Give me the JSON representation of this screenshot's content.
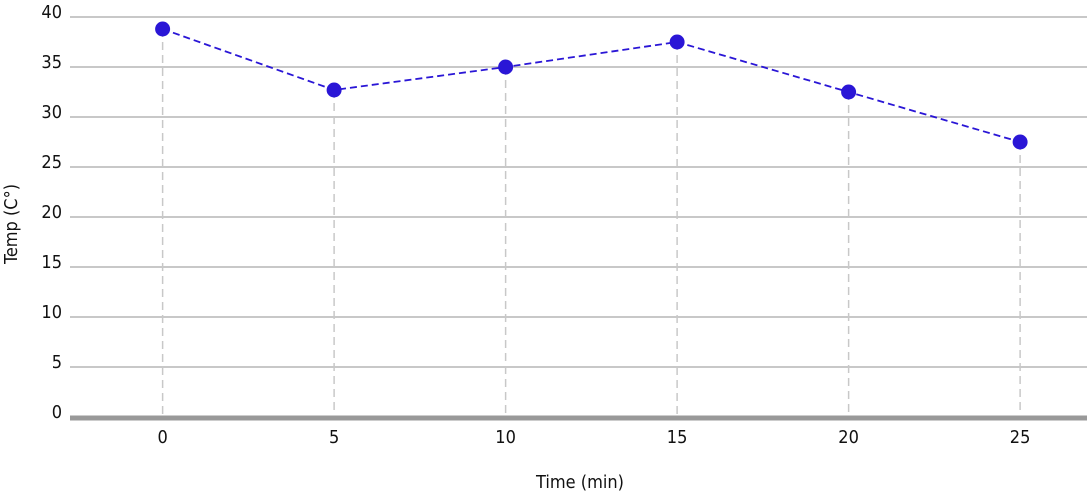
{
  "chart_data": {
    "type": "line",
    "x_label": "Time (min)",
    "y_label": "Temp (C°)",
    "x": [
      0,
      5,
      10,
      15,
      20,
      25
    ],
    "series": [
      {
        "color": "#2a16d6",
        "values": [
          38.8,
          32.7,
          35,
          37.5,
          32.5,
          27.5
        ]
      }
    ],
    "xlim": [
      -2.7,
      26.95
    ],
    "xticks": [
      0,
      5,
      10,
      15,
      20,
      25
    ],
    "ylim": [
      0,
      40
    ],
    "yticks": [
      0,
      5,
      10,
      15,
      20,
      25,
      30,
      35,
      40
    ],
    "grid": true
  }
}
